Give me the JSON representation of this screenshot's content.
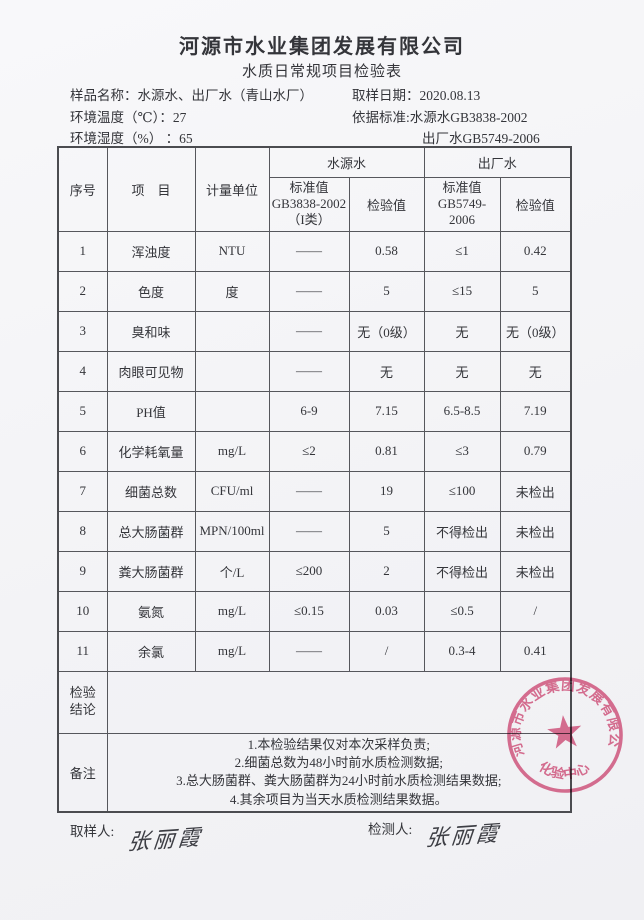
{
  "header": {
    "company": "河源市水业集团发展有限公司",
    "report_title": "水质日常规项目检验表",
    "sample_name": "样品名称：水源水、出厂水（青山水厂）",
    "sampling_date": "取样日期：2020.08.13",
    "env_temperature": "环境温度（℃）：27",
    "standard_basis": "依据标准:水源水GB3838-2002",
    "env_humidity": "环境湿度（%） ：65",
    "standard_basis2": "出厂水GB5749-2006"
  },
  "table": {
    "headers": {
      "seq": "序号",
      "item": "项　目",
      "unit": "计量单位",
      "source_group": "水源水",
      "outlet_group": "出厂水",
      "source_std": "标准值\nGB3838-2002\n（I类）",
      "outlet_std": "标准值\nGB5749-2006",
      "check_value": "检验值"
    },
    "rows": [
      [
        "1",
        "浑浊度",
        "NTU",
        "——",
        "0.58",
        "≤1",
        "0.42"
      ],
      [
        "2",
        "色度",
        "度",
        "——",
        "5",
        "≤15",
        "5"
      ],
      [
        "3",
        "臭和味",
        "",
        "——",
        "无（0级）",
        "无",
        "无（0级）"
      ],
      [
        "4",
        "肉眼可见物",
        "",
        "——",
        "无",
        "无",
        "无"
      ],
      [
        "5",
        "PH值",
        "",
        "6-9",
        "7.15",
        "6.5-8.5",
        "7.19"
      ],
      [
        "6",
        "化学耗氧量",
        "mg/L",
        "≤2",
        "0.81",
        "≤3",
        "0.79"
      ],
      [
        "7",
        "细菌总数",
        "CFU/ml",
        "——",
        "19",
        "≤100",
        "未检出"
      ],
      [
        "8",
        "总大肠菌群",
        "MPN/100ml",
        "——",
        "5",
        "不得检出",
        "未检出"
      ],
      [
        "9",
        "粪大肠菌群",
        "个/L",
        "≤200",
        "2",
        "不得检出",
        "未检出"
      ],
      [
        "10",
        "氨氮",
        "mg/L",
        "≤0.15",
        "0.03",
        "≤0.5",
        "/"
      ],
      [
        "11",
        "余氯",
        "mg/L",
        "——",
        "/",
        "0.3-4",
        "0.41"
      ]
    ],
    "conclusion_label": "检验\n结论",
    "conclusion_value": "",
    "remarks_label": "备注",
    "remarks_text": "1.本检验结果仅对本次采样负责;\n2.细菌总数为48小时前水质检测数据;\n3.总大肠菌群、粪大肠菌群为24小时前水质检测结果数据;\n4.其余项目为当天水质检测结果数据。"
  },
  "footer": {
    "sampler_label": "取样人:",
    "sampler_signature": "张丽霞",
    "tester_label": "检测人:",
    "tester_signature": "张丽霞"
  },
  "stamp": {
    "ring_text": "河源市水业集团发展有限公司",
    "center_text": "化验中心",
    "color": "#d9537c"
  }
}
